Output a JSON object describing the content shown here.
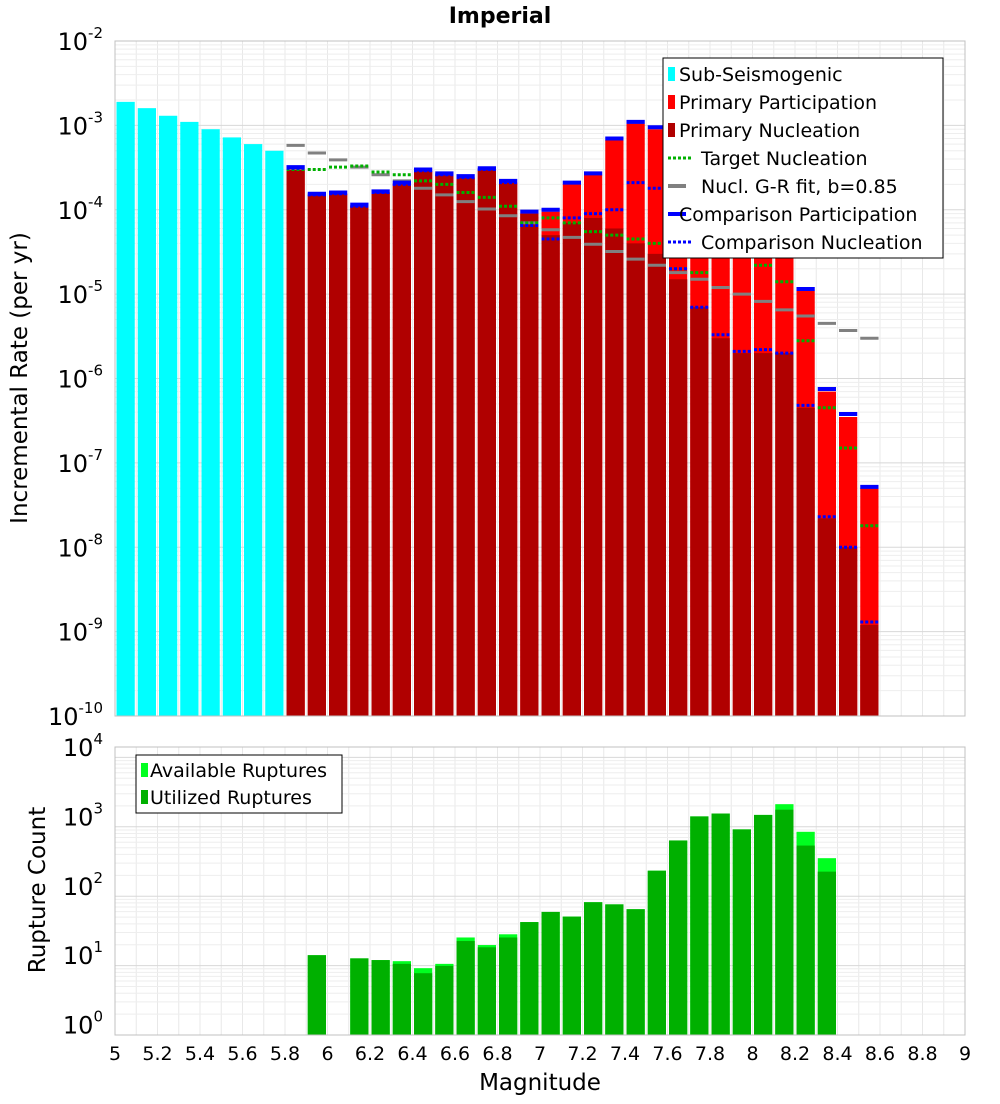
{
  "title": "Imperial",
  "chart_data": [
    {
      "type": "bar",
      "title": "Imperial",
      "xlabel": "",
      "ylabel": "Incremental Rate (per yr)",
      "yscale": "log",
      "ylim_exp": [
        -10,
        -2
      ],
      "xlim": [
        5,
        9
      ],
      "bin_width": 0.1,
      "legend_position": "top-right",
      "legend": [
        "Sub-Seismogenic",
        "Primary Participation",
        "Primary Nucleation",
        "Target Nucleation",
        "Nucl. G-R fit, b=0.85",
        "Comparison Participation",
        "Comparison Nucleation"
      ],
      "colors": {
        "sub_seismogenic": "#00ffff",
        "primary_participation": "#ff0000",
        "primary_nucleation": "#b00000",
        "target_nucleation": "#00b000",
        "gr_fit": "#808080",
        "comparison_participation": "#0000ff",
        "comparison_nucleation": "#0000ff",
        "comparison_faint": "#c0c0ff"
      },
      "sub_seismogenic": {
        "x": [
          5.05,
          5.15,
          5.25,
          5.35,
          5.45,
          5.55,
          5.65,
          5.75
        ],
        "values": [
          0.0019,
          0.0016,
          0.0013,
          0.0011,
          0.0009,
          0.00072,
          0.0006,
          0.0005
        ]
      },
      "mag_bins": [
        5.85,
        5.95,
        6.05,
        6.15,
        6.25,
        6.35,
        6.45,
        6.55,
        6.65,
        6.75,
        6.85,
        6.95,
        7.05,
        7.15,
        7.25,
        7.35,
        7.45,
        7.55,
        7.65,
        7.75,
        7.85,
        7.95,
        8.05,
        8.15,
        8.25,
        8.35,
        8.45,
        8.55
      ],
      "primary_participation": [
        0.0003,
        0.00015,
        0.000155,
        0.00011,
        0.00016,
        0.0002,
        0.00029,
        0.00026,
        0.00024,
        0.0003,
        0.00021,
        9e-05,
        9.5e-05,
        0.0002,
        0.00026,
        0.00067,
        0.00105,
        0.0009,
        0.00015,
        8e-05,
        3.2e-05,
        3.5e-05,
        3e-05,
        4.5e-05,
        1.1e-05,
        7e-07,
        3.5e-07,
        5e-08
      ],
      "primary_nucleation": [
        0.0003,
        0.00015,
        0.000155,
        0.00011,
        0.00016,
        0.0002,
        0.00029,
        0.00026,
        0.00024,
        0.0003,
        0.00021,
        9e-05,
        5e-05,
        7e-05,
        8e-05,
        6e-05,
        4e-05,
        3e-05,
        1.5e-05,
        7e-06,
        3e-06,
        2e-06,
        2e-06,
        2e-06,
        4.5e-07,
        2.2e-08,
        1e-08,
        1.2e-09
      ],
      "target_nucleation": [
        0.0003,
        0.0003,
        0.00032,
        0.00033,
        0.00028,
        0.00026,
        0.00022,
        0.0002,
        0.00016,
        0.00014,
        0.00011,
        7e-05,
        8e-05,
        7e-05,
        5.5e-05,
        5e-05,
        4.5e-05,
        4e-05,
        2e-05,
        1.8e-05,
        3.5e-05,
        3e-05,
        2.2e-05,
        1.4e-05,
        2.8e-06,
        4.5e-07,
        1.5e-07,
        1.8e-08
      ],
      "gr_fit": [
        0.00058,
        0.00047,
        0.00039,
        0.00032,
        0.00026,
        0.00022,
        0.00018,
        0.00015,
        0.000125,
        0.000102,
        8.5e-05,
        7e-05,
        5.8e-05,
        4.7e-05,
        3.9e-05,
        3.2e-05,
        2.6e-05,
        2.2e-05,
        1.8e-05,
        1.5e-05,
        1.2e-05,
        1e-05,
        8.2e-06,
        6.5e-06,
        5.5e-06,
        4.5e-06,
        3.7e-06,
        3e-06
      ],
      "comparison_participation": [
        0.00032,
        0.000155,
        0.00016,
        0.000115,
        0.000165,
        0.00021,
        0.0003,
        0.00027,
        0.00025,
        0.00031,
        0.00022,
        9.5e-05,
        0.0001,
        0.00021,
        0.00027,
        0.0007,
        0.0011,
        0.00095,
        0.00016,
        9e-05,
        3.3e-05,
        3.6e-05,
        3.1e-05,
        4.7e-05,
        1.15e-05,
        7.5e-07,
        3.8e-07,
        5.2e-08
      ],
      "comparison_nucleation": [
        0.00031,
        0.00015,
        0.000155,
        0.00011,
        0.00016,
        0.0002,
        0.00029,
        0.00026,
        0.00024,
        0.0003,
        0.00021,
        6.5e-05,
        4.5e-05,
        8e-05,
        9e-05,
        0.0001,
        0.00021,
        0.00018,
        2e-05,
        7e-06,
        3.3e-06,
        2.1e-06,
        2.2e-06,
        2e-06,
        4.8e-07,
        2.3e-08,
        1e-08,
        1.3e-09
      ]
    },
    {
      "type": "bar",
      "title": "",
      "xlabel": "Magnitude",
      "ylabel": "Rupture Count",
      "yscale": "log",
      "ylim_exp": [
        0,
        4
      ],
      "xlim": [
        5,
        9
      ],
      "legend_position": "top-left",
      "legend": [
        "Available Ruptures",
        "Utilized Ruptures"
      ],
      "colors": {
        "available": "#00ff20",
        "utilized": "#00b000"
      },
      "x_ticks": [
        "5",
        "5.2",
        "5.4",
        "5.6",
        "5.8",
        "6",
        "6.2",
        "6.4",
        "6.6",
        "6.8",
        "7",
        "7.2",
        "7.4",
        "7.6",
        "7.8",
        "8",
        "8.2",
        "8.4",
        "8.6",
        "8.8",
        "9"
      ],
      "mag_bins": [
        5.95,
        6.15,
        6.25,
        6.35,
        6.45,
        6.55,
        6.65,
        6.75,
        6.85,
        6.95,
        7.05,
        7.15,
        7.25,
        7.35,
        7.45,
        7.55,
        7.65,
        7.75,
        7.85,
        7.95,
        8.05,
        8.15,
        8.25,
        8.35
      ],
      "available": [
        10,
        9,
        8.5,
        8.2,
        6.5,
        7.5,
        18,
        14,
        20,
        30,
        42,
        36,
        58,
        54,
        46,
        165,
        450,
        1000,
        1100,
        650,
        1050,
        1500,
        600,
        250
      ],
      "utilized": [
        10,
        9,
        8.5,
        7.5,
        5.5,
        7,
        16,
        13,
        18,
        30,
        42,
        36,
        58,
        54,
        46,
        165,
        450,
        1000,
        1100,
        650,
        1050,
        1250,
        380,
        160
      ]
    }
  ]
}
